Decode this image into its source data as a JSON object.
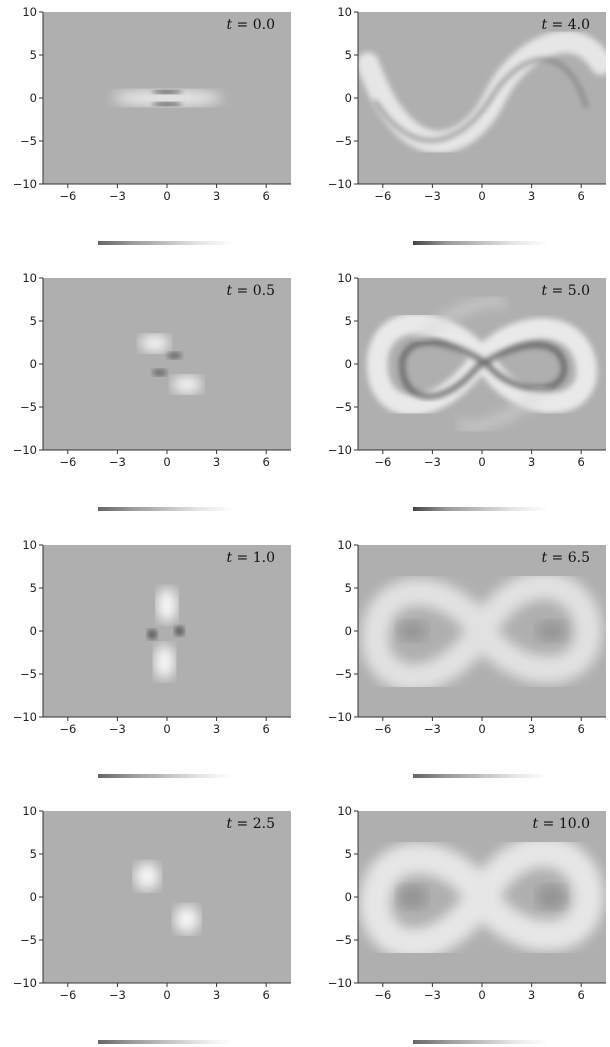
{
  "chart_data": [
    {
      "type": "heatmap",
      "title": "t = 0.0",
      "time_var": "t",
      "time_value": "0.0",
      "xlim": [
        -7.5,
        7.5
      ],
      "ylim": [
        -10,
        10
      ],
      "xticks": [
        "−6",
        "−3",
        "0",
        "3",
        "6"
      ],
      "yticks": [
        "10",
        "5",
        "0",
        "−5",
        "−10"
      ],
      "colorbar_range": [
        0.75,
        0.25
      ],
      "colormap": "grayscale",
      "background": "#afafaf"
    },
    {
      "type": "heatmap",
      "title": "t = 4.0",
      "time_var": "t",
      "time_value": "4.0",
      "xlim": [
        -7.5,
        7.5
      ],
      "ylim": [
        -10,
        10
      ],
      "xticks": [
        "−6",
        "−3",
        "0",
        "3",
        "6"
      ],
      "yticks": [
        "10",
        "5",
        "0",
        "−5",
        "−10"
      ],
      "colorbar_range": [
        0.75,
        0.25
      ],
      "colormap": "grayscale",
      "background": "#afafaf"
    },
    {
      "type": "heatmap",
      "title": "t = 0.5",
      "time_var": "t",
      "time_value": "0.5",
      "xlim": [
        -7.5,
        7.5
      ],
      "ylim": [
        -10,
        10
      ],
      "xticks": [
        "−6",
        "−3",
        "0",
        "3",
        "6"
      ],
      "yticks": [
        "10",
        "5",
        "0",
        "−5",
        "−10"
      ],
      "colorbar_range": [
        0.75,
        0.25
      ],
      "colormap": "grayscale",
      "background": "#afafaf"
    },
    {
      "type": "heatmap",
      "title": "t = 5.0",
      "time_var": "t",
      "time_value": "5.0",
      "xlim": [
        -7.5,
        7.5
      ],
      "ylim": [
        -10,
        10
      ],
      "xticks": [
        "−6",
        "−3",
        "0",
        "3",
        "6"
      ],
      "yticks": [
        "10",
        "5",
        "0",
        "−5",
        "−10"
      ],
      "colorbar_range": [
        0.75,
        0.25
      ],
      "colormap": "grayscale",
      "background": "#afafaf"
    },
    {
      "type": "heatmap",
      "title": "t = 1.0",
      "time_var": "t",
      "time_value": "1.0",
      "xlim": [
        -7.5,
        7.5
      ],
      "ylim": [
        -10,
        10
      ],
      "xticks": [
        "−6",
        "−3",
        "0",
        "3",
        "6"
      ],
      "yticks": [
        "10",
        "5",
        "0",
        "−5",
        "−10"
      ],
      "colorbar_range": [
        0.75,
        0.25
      ],
      "colormap": "grayscale",
      "background": "#afafaf"
    },
    {
      "type": "heatmap",
      "title": "t = 6.5",
      "time_var": "t",
      "time_value": "6.5",
      "xlim": [
        -7.5,
        7.5
      ],
      "ylim": [
        -10,
        10
      ],
      "xticks": [
        "−6",
        "−3",
        "0",
        "3",
        "6"
      ],
      "yticks": [
        "10",
        "5",
        "0",
        "−5",
        "−10"
      ],
      "colorbar_range": [
        0.75,
        0.25
      ],
      "colormap": "grayscale",
      "background": "#afafaf"
    },
    {
      "type": "heatmap",
      "title": "t = 2.5",
      "time_var": "t",
      "time_value": "2.5",
      "xlim": [
        -7.5,
        7.5
      ],
      "ylim": [
        -10,
        10
      ],
      "xticks": [
        "−6",
        "−3",
        "0",
        "3",
        "6"
      ],
      "yticks": [
        "10",
        "5",
        "0",
        "−5",
        "−10"
      ],
      "colorbar_range": [
        0.75,
        0.25
      ],
      "colormap": "grayscale",
      "background": "#afafaf"
    },
    {
      "type": "heatmap",
      "title": "t = 10.0",
      "time_var": "t",
      "time_value": "10.0",
      "xlim": [
        -7.5,
        7.5
      ],
      "ylim": [
        -10,
        10
      ],
      "xticks": [
        "−6",
        "−3",
        "0",
        "3",
        "6"
      ],
      "yticks": [
        "10",
        "5",
        "0",
        "−5",
        "−10"
      ],
      "colorbar_range": [
        0.75,
        0.25
      ],
      "colormap": "grayscale",
      "background": "#afafaf"
    }
  ]
}
